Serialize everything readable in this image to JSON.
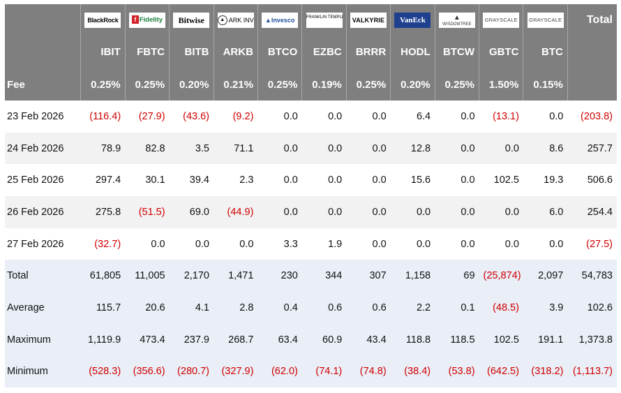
{
  "header": {
    "total_label": "Total",
    "fee_label": "Fee"
  },
  "issuers": [
    {
      "logo_text": "BlackRock",
      "logo_icon": "blackrock-logo"
    },
    {
      "logo_text": "Fidelity",
      "logo_icon": "fidelity-logo"
    },
    {
      "logo_text": "Bitwise",
      "logo_icon": "bitwise-logo"
    },
    {
      "logo_text": "ARK INVEST",
      "logo_icon": "ark-invest-logo"
    },
    {
      "logo_text": "Invesco",
      "logo_icon": "invesco-logo"
    },
    {
      "logo_text": "FRANKLIN TEMPLETON",
      "logo_icon": "franklin-templeton-logo"
    },
    {
      "logo_text": "VALKYRIE",
      "logo_icon": "valkyrie-logo"
    },
    {
      "logo_text": "VanEck",
      "logo_icon": "vaneck-logo"
    },
    {
      "logo_text": "WISDOMTREE",
      "logo_icon": "wisdomtree-logo"
    },
    {
      "logo_text": "GRAYSCALE",
      "logo_icon": "grayscale-logo"
    },
    {
      "logo_text": "GRAYSCALE",
      "logo_icon": "grayscale-logo"
    }
  ],
  "tickers": [
    "IBIT",
    "FBTC",
    "BITB",
    "ARKB",
    "BTCO",
    "EZBC",
    "BRRR",
    "HODL",
    "BTCW",
    "GBTC",
    "BTC"
  ],
  "fees": [
    "0.25%",
    "0.25%",
    "0.20%",
    "0.21%",
    "0.25%",
    "0.19%",
    "0.25%",
    "0.20%",
    "0.25%",
    "1.50%",
    "0.15%"
  ],
  "rows": [
    {
      "label": "23 Feb 2026",
      "cells": [
        "(116.4)",
        "(27.9)",
        "(43.6)",
        "(9.2)",
        "0.0",
        "0.0",
        "0.0",
        "6.4",
        "0.0",
        "(13.1)",
        "0.0",
        "(203.8)"
      ]
    },
    {
      "label": "24 Feb 2026",
      "cells": [
        "78.9",
        "82.8",
        "3.5",
        "71.1",
        "0.0",
        "0.0",
        "0.0",
        "12.8",
        "0.0",
        "0.0",
        "8.6",
        "257.7"
      ]
    },
    {
      "label": "25 Feb 2026",
      "cells": [
        "297.4",
        "30.1",
        "39.4",
        "2.3",
        "0.0",
        "0.0",
        "0.0",
        "15.6",
        "0.0",
        "102.5",
        "19.3",
        "506.6"
      ]
    },
    {
      "label": "26 Feb 2026",
      "cells": [
        "275.8",
        "(51.5)",
        "69.0",
        "(44.9)",
        "0.0",
        "0.0",
        "0.0",
        "0.0",
        "0.0",
        "0.0",
        "6.0",
        "254.4"
      ]
    },
    {
      "label": "27 Feb 2026",
      "cells": [
        "(32.7)",
        "0.0",
        "0.0",
        "0.0",
        "3.3",
        "1.9",
        "0.0",
        "0.0",
        "0.0",
        "0.0",
        "0.0",
        "(27.5)"
      ]
    }
  ],
  "stats": [
    {
      "label": "Total",
      "cells": [
        "61,805",
        "11,005",
        "2,170",
        "1,471",
        "230",
        "344",
        "307",
        "1,158",
        "69",
        "(25,874)",
        "2,097",
        "54,783"
      ]
    },
    {
      "label": "Average",
      "cells": [
        "115.7",
        "20.6",
        "4.1",
        "2.8",
        "0.4",
        "0.6",
        "0.6",
        "2.2",
        "0.1",
        "(48.5)",
        "3.9",
        "102.6"
      ]
    },
    {
      "label": "Maximum",
      "cells": [
        "1,119.9",
        "473.4",
        "237.9",
        "268.7",
        "63.4",
        "60.9",
        "43.4",
        "118.8",
        "118.5",
        "102.5",
        "191.1",
        "1,373.8"
      ]
    },
    {
      "label": "Minimum",
      "cells": [
        "(528.3)",
        "(356.6)",
        "(280.7)",
        "(327.9)",
        "(62.0)",
        "(74.1)",
        "(74.8)",
        "(38.4)",
        "(53.8)",
        "(642.5)",
        "(318.2)",
        "(1,113.7)"
      ]
    }
  ],
  "colors": {
    "header_bg": "#7f7f7f",
    "negative": "#d00000",
    "row_alt": "#f2f2f2",
    "stats_bg": "#e9eef7"
  }
}
